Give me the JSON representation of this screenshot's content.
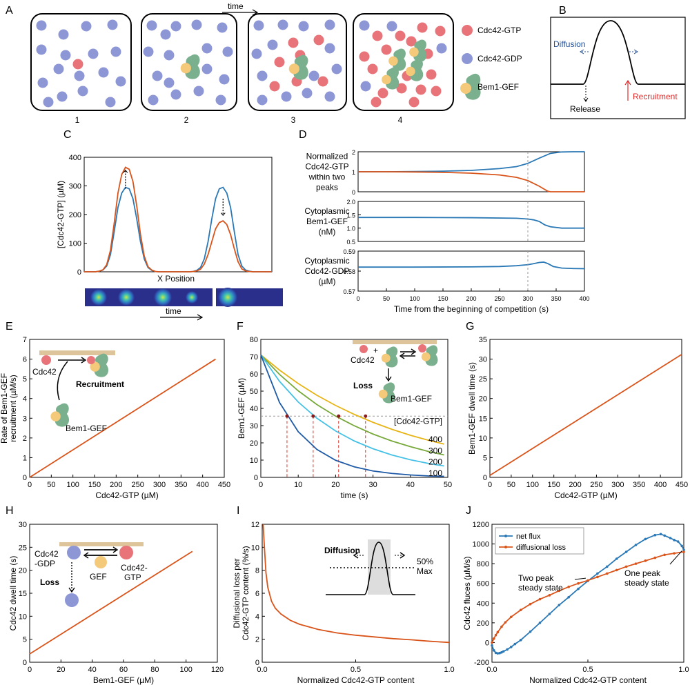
{
  "colors": {
    "gtp": "#e8747a",
    "gdp": "#8e97d6",
    "gef": "#f5c97a",
    "gef_green": "#7ab08e",
    "blue": "#2a78b5",
    "orange": "#d9541a",
    "green": "#77a83a",
    "yellow": "#e7b416",
    "cyan": "#46c1e6",
    "navy": "#1f5aa6",
    "membrane": "#ddc49a",
    "ref_red": "#d9362a",
    "ref_gray": "#9a9a9a",
    "black": "#000000",
    "shade": "#dddddd",
    "hm_bg": "#2b2f8c"
  },
  "panel_letters": [
    "A",
    "B",
    "C",
    "D",
    "E",
    "F",
    "G",
    "H",
    "I",
    "J"
  ],
  "panelA": {
    "time_label": "time",
    "box_labels": [
      "1",
      "2",
      "3",
      "4"
    ],
    "legend": [
      "Cdc42-GTP",
      "Cdc42-GDP",
      "Bem1-GEF"
    ]
  },
  "panelB": {
    "diffusion": "Diffusion",
    "release": "Release",
    "recruitment": "Recruitment"
  },
  "panelC": {
    "xlabel": "X Position",
    "time_label": "time"
  },
  "panelE": {
    "cdc42": "Cdc42",
    "recruitment": "Recruitment",
    "bem1": "Bem1-GEF"
  },
  "panelF": {
    "cdc42": "Cdc42",
    "plus": "+",
    "loss": "Loss",
    "bem1": "Bem1-GEF"
  },
  "panelH": {
    "gdp": [
      "Cdc42",
      "-GDP"
    ],
    "gef": "GEF",
    "gtp": [
      "Cdc42-",
      "GTP"
    ],
    "loss": "Loss"
  },
  "panelI": {
    "diffusion": "Diffusion",
    "max": [
      "50%",
      "Max"
    ]
  },
  "panelJ": {
    "two_peak": [
      "Two peak",
      "steady state"
    ],
    "one_peak": [
      "One peak",
      "steady state"
    ]
  },
  "chart_data": [
    {
      "id": "C",
      "type": "line",
      "xlabel": "",
      "ylabel": "[Cdc42-GTP] (µM)",
      "ylim": [
        0,
        400
      ],
      "yticks": [
        "0",
        "100",
        "200",
        "300",
        "400"
      ],
      "series": [
        {
          "name": "",
          "color": "blue",
          "x": [
            0,
            0.06,
            0.08,
            0.1,
            0.12,
            0.14,
            0.16,
            0.18,
            0.2,
            0.22,
            0.24,
            0.26,
            0.28,
            0.3,
            0.32,
            0.34,
            0.36,
            0.38,
            0.4,
            0.56,
            0.58,
            0.6,
            0.62,
            0.64,
            0.66,
            0.68,
            0.7,
            0.72,
            0.74,
            0.76,
            0.78,
            0.8,
            0.82,
            0.84,
            0.86,
            0.88,
            0.9,
            1
          ],
          "y": [
            0,
            0,
            2,
            6,
            20,
            60,
            140,
            225,
            275,
            295,
            290,
            255,
            185,
            105,
            45,
            15,
            5,
            1,
            0,
            0,
            1,
            5,
            15,
            45,
            105,
            185,
            255,
            290,
            295,
            275,
            225,
            140,
            60,
            20,
            6,
            2,
            0,
            0
          ]
        },
        {
          "name": "",
          "color": "orange",
          "x": [
            0,
            0.06,
            0.08,
            0.1,
            0.12,
            0.14,
            0.16,
            0.18,
            0.2,
            0.22,
            0.24,
            0.26,
            0.28,
            0.3,
            0.32,
            0.34,
            0.36,
            0.38,
            0.4,
            0.56,
            0.58,
            0.6,
            0.62,
            0.64,
            0.66,
            0.68,
            0.7,
            0.72,
            0.74,
            0.76,
            0.78,
            0.8,
            0.82,
            0.84,
            0.86,
            0.88,
            0.9,
            1
          ],
          "y": [
            0,
            0,
            2,
            7,
            25,
            75,
            170,
            275,
            340,
            365,
            358,
            315,
            230,
            130,
            55,
            18,
            6,
            1,
            0,
            0,
            1,
            3,
            9,
            27,
            60,
            105,
            150,
            172,
            178,
            165,
            130,
            80,
            35,
            10,
            3,
            1,
            0,
            0
          ]
        }
      ],
      "annotations": [
        "dotted-arrow-up",
        "dotted-arrow-down"
      ]
    },
    {
      "id": "D1",
      "type": "line",
      "ylabel": [
        "Normalized",
        "Cdc42-GTP",
        "within two",
        "peaks"
      ],
      "xlim": [
        0,
        400
      ],
      "ylim": [
        0,
        2
      ],
      "yticks": [
        "0",
        "1",
        "2"
      ],
      "series": [
        {
          "name": "",
          "color": "blue",
          "x": [
            0,
            50,
            100,
            150,
            200,
            250,
            280,
            300,
            320,
            340,
            360,
            380,
            400
          ],
          "y": [
            1,
            1.0,
            1.01,
            1.03,
            1.07,
            1.16,
            1.26,
            1.42,
            1.68,
            1.92,
            1.99,
            2,
            2
          ]
        },
        {
          "name": "",
          "color": "orange",
          "x": [
            0,
            50,
            100,
            150,
            200,
            250,
            280,
            300,
            320,
            335,
            340,
            360,
            380,
            400
          ],
          "y": [
            1,
            1.0,
            0.99,
            0.97,
            0.93,
            0.84,
            0.72,
            0.56,
            0.28,
            0.03,
            0,
            0,
            0,
            0
          ]
        }
      ]
    },
    {
      "id": "D2",
      "type": "line",
      "ylabel": [
        "Cytoplasmic",
        "Bem1-GEF",
        "(nM)"
      ],
      "xlim": [
        0,
        400
      ],
      "ylim": [
        0.5,
        2.0
      ],
      "yticks": [
        "0.5",
        "1.0",
        "1.5",
        "2.0"
      ],
      "series": [
        {
          "name": "",
          "color": "blue",
          "x": [
            0,
            100,
            200,
            280,
            300,
            310,
            320,
            330,
            340,
            360,
            380,
            400
          ],
          "y": [
            1.4,
            1.4,
            1.39,
            1.37,
            1.34,
            1.31,
            1.25,
            1.12,
            1.05,
            1.0,
            1.0,
            1.0
          ]
        }
      ]
    },
    {
      "id": "D3",
      "type": "line",
      "ylabel": [
        "Cytoplasmic",
        "Cdc42-GDP",
        "(µM)"
      ],
      "xlabel": "Time from the beginning of competition (s)",
      "xlim": [
        0,
        400
      ],
      "ylim": [
        0.57,
        0.59
      ],
      "yticks": [
        "0.57",
        "0.58",
        "0.59"
      ],
      "xticks": [
        "0",
        "50",
        "100",
        "150",
        "200",
        "250",
        "300",
        "350",
        "400"
      ],
      "series": [
        {
          "name": "",
          "color": "blue",
          "x": [
            0,
            100,
            200,
            250,
            280,
            300,
            310,
            320,
            328,
            335,
            345,
            360,
            380,
            400
          ],
          "y": [
            0.582,
            0.582,
            0.5821,
            0.5823,
            0.5827,
            0.5832,
            0.5837,
            0.5843,
            0.5845,
            0.5838,
            0.5823,
            0.5815,
            0.5813,
            0.5812
          ]
        }
      ],
      "ref_line_x": 300
    },
    {
      "id": "E",
      "type": "line",
      "xlabel": "Cdc42-GTP (µM)",
      "ylabel": [
        "Rate of Bem1-GEF",
        "recruitment (µM/s)"
      ],
      "xlim": [
        0,
        450
      ],
      "ylim": [
        0,
        7
      ],
      "xticks": [
        "0",
        "50",
        "100",
        "150",
        "200",
        "250",
        "300",
        "350",
        "400",
        "450"
      ],
      "yticks": [
        "0",
        "1",
        "2",
        "3",
        "4",
        "5",
        "6",
        "7"
      ],
      "series": [
        {
          "name": "",
          "color": "orange",
          "x": [
            0,
            430
          ],
          "y": [
            0,
            6.0
          ]
        }
      ]
    },
    {
      "id": "F",
      "type": "line",
      "xlabel": "time (s)",
      "ylabel": "Bem1-GEF (µM)",
      "xlim": [
        0,
        50
      ],
      "ylim": [
        0,
        80
      ],
      "xticks": [
        "0",
        "10",
        "20",
        "30",
        "40",
        "50"
      ],
      "yticks": [
        "0",
        "10",
        "20",
        "30",
        "40",
        "50",
        "60",
        "70",
        "80"
      ],
      "legend_title": "[Cdc42-GTP]",
      "series": [
        {
          "name": "400",
          "color": "yellow",
          "x": [
            0,
            5,
            10,
            15,
            20,
            25,
            30,
            35,
            40,
            45,
            49
          ],
          "y": [
            71,
            62.2,
            54.4,
            47.6,
            41.7,
            36.5,
            31.9,
            27.9,
            24.4,
            21.4,
            19.3
          ]
        },
        {
          "name": "300",
          "color": "green",
          "x": [
            0,
            5,
            10,
            15,
            20,
            25,
            30,
            35,
            40,
            45,
            49
          ],
          "y": [
            71,
            59.7,
            50.2,
            42.2,
            35.5,
            29.9,
            25.1,
            21.1,
            17.8,
            14.9,
            13.0
          ]
        },
        {
          "name": "200",
          "color": "cyan",
          "x": [
            0,
            5,
            10,
            15,
            20,
            25,
            30,
            35,
            40,
            45,
            49
          ],
          "y": [
            71,
            55.7,
            43.7,
            34.3,
            26.9,
            21.1,
            16.6,
            13.0,
            10.2,
            8.0,
            6.6
          ]
        },
        {
          "name": "100",
          "color": "navy",
          "x": [
            0,
            5,
            10,
            15,
            20,
            25,
            30,
            35,
            40,
            45,
            49
          ],
          "y": [
            71,
            43.4,
            26.5,
            16.2,
            9.9,
            6.1,
            3.7,
            2.3,
            1.4,
            0.8,
            0.6
          ]
        }
      ],
      "half_line_y": 35.5,
      "half_points_x": [
        7,
        14,
        20.8,
        28
      ]
    },
    {
      "id": "G",
      "type": "line",
      "xlabel": "Cdc42-GTP (µM)",
      "ylabel": "Bem1-GEF dwell time (s)",
      "xlim": [
        0,
        450
      ],
      "ylim": [
        0,
        35
      ],
      "xticks": [
        "0",
        "50",
        "100",
        "150",
        "200",
        "250",
        "300",
        "350",
        "400",
        "450"
      ],
      "yticks": [
        "0",
        "5",
        "10",
        "15",
        "20",
        "25",
        "30",
        "35"
      ],
      "series": [
        {
          "name": "",
          "color": "orange",
          "x": [
            0,
            450
          ],
          "y": [
            0.5,
            31.2
          ]
        }
      ]
    },
    {
      "id": "H",
      "type": "line",
      "xlabel": "Bem1-GEF (µM)",
      "ylabel": "Cdc42 dwell time (s)",
      "xlim": [
        0,
        120
      ],
      "ylim": [
        0,
        30
      ],
      "xticks": [
        "0",
        "20",
        "40",
        "60",
        "80",
        "100",
        "120"
      ],
      "yticks": [
        "0",
        "5",
        "10",
        "15",
        "20",
        "25",
        "30"
      ],
      "series": [
        {
          "name": "",
          "color": "orange",
          "x": [
            0,
            104
          ],
          "y": [
            1.8,
            24.1
          ]
        }
      ]
    },
    {
      "id": "I",
      "type": "line",
      "xlabel": "Normalized Cdc42-GTP content",
      "ylabel": [
        "Diffusional loss per",
        "Cdc42-GTP content (%/s)"
      ],
      "xlim": [
        0,
        1
      ],
      "ylim": [
        0,
        12
      ],
      "xticks": [
        "0.0",
        "0.5",
        "1.0"
      ],
      "yticks": [
        "0",
        "2",
        "4",
        "6",
        "8",
        "10",
        "12"
      ],
      "series": [
        {
          "name": "",
          "color": "orange",
          "x": [
            0.005,
            0.01,
            0.02,
            0.03,
            0.05,
            0.07,
            0.1,
            0.15,
            0.2,
            0.3,
            0.4,
            0.5,
            0.6,
            0.7,
            0.8,
            0.9,
            1.0
          ],
          "y": [
            12,
            10.5,
            7.8,
            6.5,
            5.3,
            4.7,
            4.2,
            3.65,
            3.3,
            2.85,
            2.55,
            2.35,
            2.2,
            2.05,
            1.95,
            1.82,
            1.72
          ]
        }
      ]
    },
    {
      "id": "J",
      "type": "line",
      "xlabel": "Normalized Cdc42-GTP content",
      "ylabel": "Cdc42 fluces (µM/s)",
      "xlim": [
        0,
        1
      ],
      "ylim": [
        -200,
        1200
      ],
      "xticks": [
        "0.0",
        "0.5",
        "1.0"
      ],
      "yticks": [
        "-200",
        "0",
        "200",
        "400",
        "600",
        "800",
        "1000",
        "1200"
      ],
      "legend_position": "top-left",
      "series": [
        {
          "name": "net flux",
          "color": "blue",
          "x": [
            0,
            0.01,
            0.02,
            0.03,
            0.04,
            0.05,
            0.06,
            0.08,
            0.1,
            0.12,
            0.15,
            0.2,
            0.25,
            0.3,
            0.35,
            0.4,
            0.45,
            0.5,
            0.55,
            0.6,
            0.65,
            0.7,
            0.75,
            0.8,
            0.85,
            0.88,
            0.9,
            0.93,
            0.95,
            0.97,
            0.99,
            1.0
          ],
          "y": [
            -30,
            -80,
            -105,
            -110,
            -107,
            -100,
            -90,
            -70,
            -45,
            -15,
            25,
            110,
            200,
            290,
            380,
            460,
            545,
            625,
            700,
            770,
            850,
            920,
            990,
            1050,
            1090,
            1100,
            1085,
            1060,
            1040,
            1025,
            980,
            940
          ]
        },
        {
          "name": "diffusional loss",
          "color": "orange",
          "x": [
            0,
            0.01,
            0.02,
            0.03,
            0.05,
            0.07,
            0.1,
            0.15,
            0.2,
            0.25,
            0.3,
            0.35,
            0.4,
            0.45,
            0.5,
            0.55,
            0.6,
            0.65,
            0.7,
            0.75,
            0.8,
            0.85,
            0.9,
            0.95,
            1.0
          ],
          "y": [
            0,
            40,
            75,
            105,
            160,
            205,
            260,
            330,
            390,
            440,
            480,
            525,
            565,
            600,
            630,
            665,
            700,
            735,
            770,
            800,
            830,
            860,
            890,
            905,
            920
          ]
        }
      ],
      "annotations": [
        "Two peak steady state",
        "One peak steady state"
      ]
    }
  ]
}
